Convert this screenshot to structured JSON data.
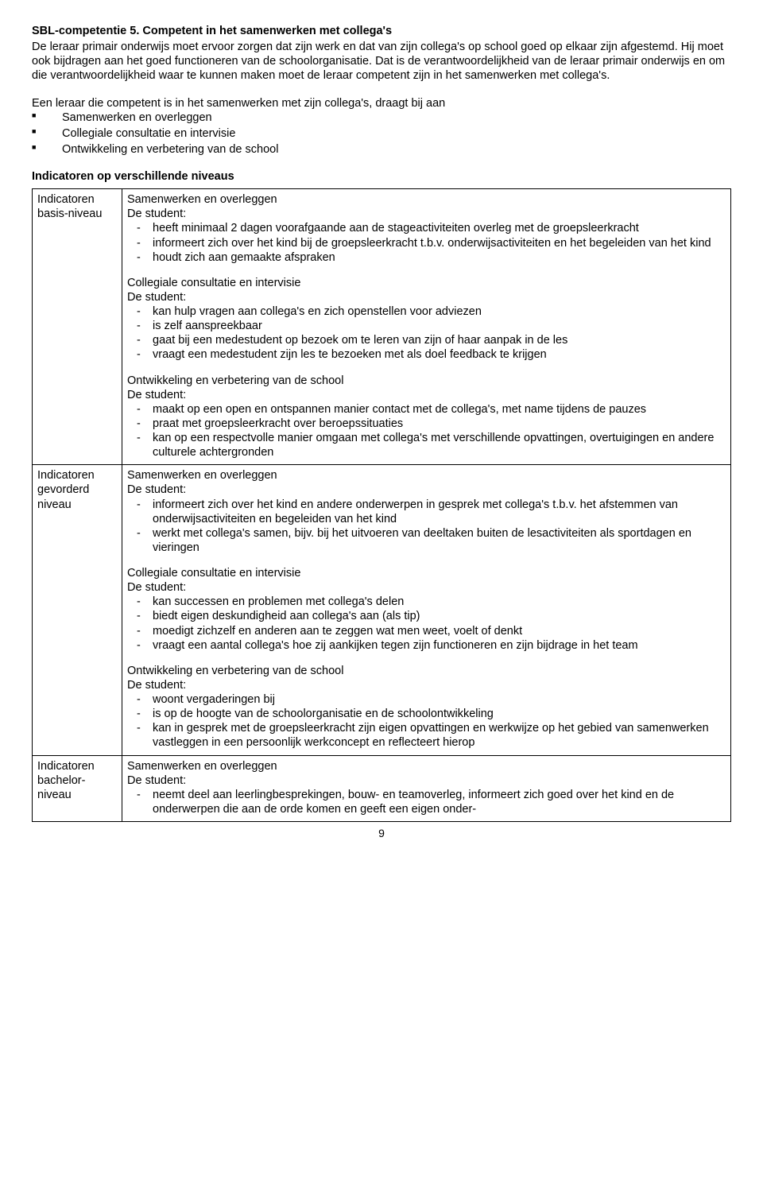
{
  "title": "SBL-competentie 5. Competent in het samenwerken met collega's",
  "intro": "De leraar primair onderwijs moet ervoor zorgen dat zijn werk en dat van zijn collega's op school goed op elkaar zijn afgestemd. Hij moet ook bijdragen aan het goed functioneren van de schoolorganisatie. Dat is de verantwoordelijkheid van de leraar primair onderwijs en om die verantwoordelijkheid waar te kunnen maken moet de leraar competent zijn in het samenwerken met collega's.",
  "subintro_lead": "Een leraar die competent is in het samenwerken met zijn collega's, draagt bij aan",
  "contrib": [
    "Samenwerken en overleggen",
    "Collegiale consultatie en intervisie",
    "Ontwikkeling en verbetering van de school"
  ],
  "levels_heading": "Indicatoren op verschillende niveaus",
  "student_label": "De student:",
  "basis": {
    "label": "Indicatoren basis-niveau",
    "s1_title": "Samenwerken en overleggen",
    "s1_items": [
      "heeft minimaal 2 dagen voorafgaande aan de stageactiviteiten overleg met de groepsleerkracht",
      "informeert zich over het kind bij de groepsleerkracht t.b.v. onderwijsactiviteiten en het begeleiden van het kind",
      "houdt zich aan gemaakte afspraken"
    ],
    "s2_title": "Collegiale consultatie en intervisie",
    "s2_items": [
      "kan hulp vragen aan collega's en zich openstellen voor adviezen",
      "is zelf aanspreekbaar",
      "gaat bij een medestudent op bezoek om te leren van zijn of haar aanpak in de les",
      "vraagt een medestudent zijn les te bezoeken met als doel feedback te krijgen"
    ],
    "s3_title": "Ontwikkeling en verbetering van de school",
    "s3_items": [
      "maakt op een open en ontspannen manier contact met de collega's, met name tijdens de pauzes",
      "praat met groepsleerkracht over beroepssituaties",
      "kan op een respectvolle manier omgaan met collega's met verschillende opvattingen, overtuigingen en andere culturele achtergronden"
    ]
  },
  "gevorderd": {
    "label": "Indicatoren gevorderd niveau",
    "s1_title": "Samenwerken en overleggen",
    "s1_items": [
      "informeert zich over het kind en andere onderwerpen in gesprek met collega's t.b.v. het afstemmen van onderwijsactiviteiten en begeleiden van het kind",
      "werkt met collega's samen, bijv. bij het uitvoeren van deeltaken buiten de lesactiviteiten als sportdagen en vieringen"
    ],
    "s2_title": "Collegiale consultatie en intervisie",
    "s2_items": [
      "kan successen en problemen met collega's delen",
      "biedt eigen deskundigheid aan collega's aan (als tip)",
      "moedigt zichzelf en anderen aan te zeggen wat men weet, voelt of denkt",
      "vraagt een aantal collega's hoe zij aankijken tegen zijn functioneren en zijn bijdrage in het team"
    ],
    "s3_title": "Ontwikkeling en verbetering van de school",
    "s3_items": [
      "woont vergaderingen bij",
      "is op de hoogte van de schoolorganisatie en de schoolontwikkeling",
      "kan in gesprek met de groepsleerkracht zijn eigen opvattingen en werkwijze op het gebied van samenwerken vastleggen in een persoonlijk werkconcept en reflecteert hierop"
    ]
  },
  "bachelor": {
    "label": "Indicatoren bachelor-niveau",
    "s1_title": "Samenwerken en overleggen",
    "s1_items": [
      "neemt deel aan leerlingbesprekingen, bouw- en teamoverleg, informeert zich goed over het kind en de onderwerpen die aan de orde komen en geeft een eigen onder-"
    ]
  },
  "page_number": "9"
}
